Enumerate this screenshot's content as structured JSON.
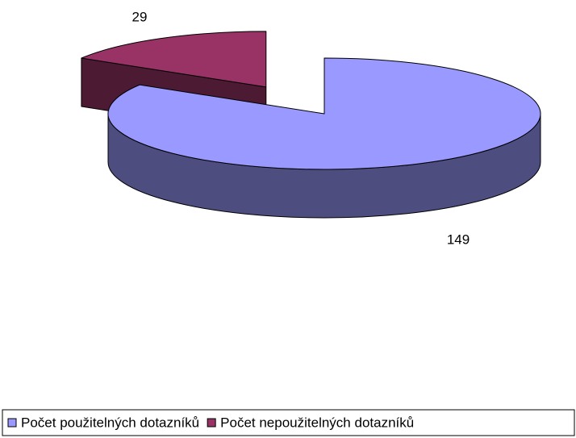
{
  "chart_data": {
    "type": "pie",
    "categories": [
      "Počet použitelných dotazníků",
      "Počet nepoužitelných dotazníků"
    ],
    "values": [
      149,
      29
    ],
    "colors": [
      "#9999ff",
      "#993366"
    ],
    "side_colors": [
      "#4d4d80",
      "#4d1a33"
    ],
    "legend": "bottom"
  }
}
